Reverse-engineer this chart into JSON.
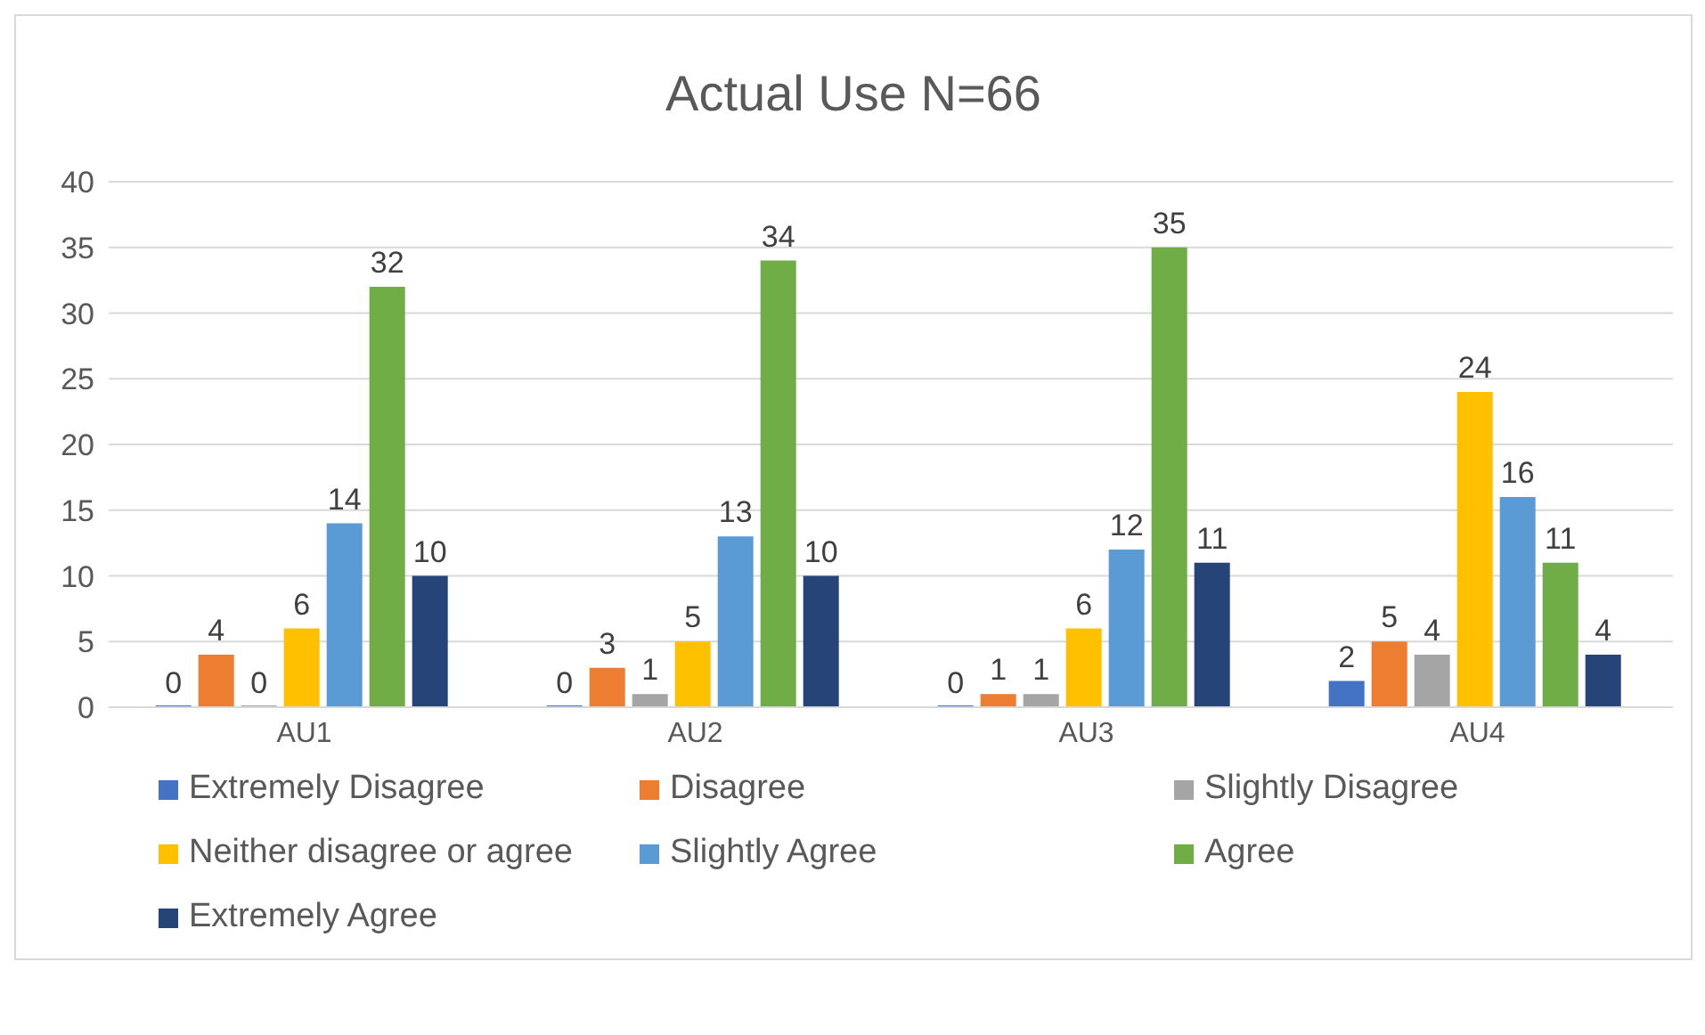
{
  "chart_data": {
    "type": "bar",
    "title": "Actual Use N=66",
    "categories": [
      "AU1",
      "AU2",
      "AU3",
      "AU4"
    ],
    "series": [
      {
        "name": "Extremely Disagree",
        "color": "#4472c4",
        "values": [
          0,
          0,
          0,
          2
        ]
      },
      {
        "name": "Disagree",
        "color": "#ed7d31",
        "values": [
          4,
          3,
          1,
          5
        ]
      },
      {
        "name": "Slightly Disagree",
        "color": "#a5a5a5",
        "values": [
          0,
          1,
          1,
          4
        ]
      },
      {
        "name": "Neither disagree or agree",
        "color": "#ffc000",
        "values": [
          6,
          5,
          6,
          24
        ]
      },
      {
        "name": "Slightly Agree",
        "color": "#5b9bd5",
        "values": [
          14,
          13,
          12,
          16
        ]
      },
      {
        "name": "Agree",
        "color": "#70ad47",
        "values": [
          32,
          34,
          35,
          11
        ]
      },
      {
        "name": "Extremely Agree",
        "color": "#264478",
        "values": [
          10,
          10,
          11,
          4
        ]
      }
    ],
    "ylim": [
      0,
      40
    ],
    "yticks": [
      0,
      5,
      10,
      15,
      20,
      25,
      30,
      35,
      40
    ],
    "grid": "y",
    "legend": "bottom",
    "data_labels": true
  }
}
